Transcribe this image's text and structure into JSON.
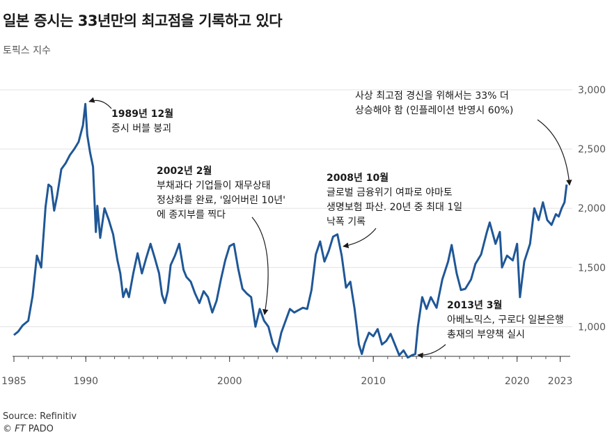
{
  "title": "일본 증시는 33년만의 최고점을 기록하고 있다",
  "subtitle": "토픽스 지수",
  "source": "Source: Refinitiv",
  "credit": {
    "copyright": "©",
    "ft": "FT",
    "partner": "PADO"
  },
  "colors": {
    "line": "#1f5797",
    "grid": "#e3e3e3",
    "text": "#1a1a1a"
  },
  "chart_data": {
    "type": "line",
    "title": "일본 증시는 33년만의 최고점을 기록하고 있다",
    "subtitle": "토픽스 지수",
    "xlabel": "",
    "ylabel": "",
    "x_ticks": [
      "1985",
      "1990",
      "2000",
      "2010",
      "2020",
      "2023"
    ],
    "y_ticks": [
      "1,000",
      "1,500",
      "2,000",
      "2,500",
      "3,000"
    ],
    "xlim": [
      1985,
      2023.6
    ],
    "ylim": [
      750,
      3000
    ],
    "grid": true,
    "legend": "none",
    "series": [
      {
        "values": [
          [
            1985.0,
            930
          ],
          [
            1985.3,
            960
          ],
          [
            1985.6,
            1010
          ],
          [
            1986.0,
            1050
          ],
          [
            1986.3,
            1260
          ],
          [
            1986.6,
            1600
          ],
          [
            1986.9,
            1500
          ],
          [
            1987.2,
            2010
          ],
          [
            1987.4,
            2200
          ],
          [
            1987.6,
            2180
          ],
          [
            1987.8,
            1980
          ],
          [
            1988.0,
            2100
          ],
          [
            1988.3,
            2330
          ],
          [
            1988.6,
            2380
          ],
          [
            1988.9,
            2450
          ],
          [
            1989.2,
            2500
          ],
          [
            1989.5,
            2560
          ],
          [
            1989.8,
            2700
          ],
          [
            1989.97,
            2880
          ],
          [
            1990.1,
            2620
          ],
          [
            1990.3,
            2470
          ],
          [
            1990.5,
            2350
          ],
          [
            1990.7,
            1800
          ],
          [
            1990.8,
            2020
          ],
          [
            1991.0,
            1750
          ],
          [
            1991.3,
            2000
          ],
          [
            1991.6,
            1900
          ],
          [
            1991.9,
            1780
          ],
          [
            1992.2,
            1560
          ],
          [
            1992.4,
            1450
          ],
          [
            1992.6,
            1250
          ],
          [
            1992.8,
            1320
          ],
          [
            1993.0,
            1250
          ],
          [
            1993.3,
            1450
          ],
          [
            1993.6,
            1620
          ],
          [
            1993.9,
            1450
          ],
          [
            1994.2,
            1580
          ],
          [
            1994.5,
            1700
          ],
          [
            1994.8,
            1580
          ],
          [
            1995.1,
            1450
          ],
          [
            1995.3,
            1270
          ],
          [
            1995.5,
            1200
          ],
          [
            1995.7,
            1300
          ],
          [
            1995.9,
            1520
          ],
          [
            1996.2,
            1600
          ],
          [
            1996.5,
            1700
          ],
          [
            1996.8,
            1480
          ],
          [
            1997.0,
            1420
          ],
          [
            1997.3,
            1380
          ],
          [
            1997.6,
            1280
          ],
          [
            1997.9,
            1200
          ],
          [
            1998.2,
            1300
          ],
          [
            1998.5,
            1250
          ],
          [
            1998.8,
            1120
          ],
          [
            1999.1,
            1220
          ],
          [
            1999.4,
            1400
          ],
          [
            1999.7,
            1560
          ],
          [
            2000.0,
            1680
          ],
          [
            2000.3,
            1700
          ],
          [
            2000.6,
            1490
          ],
          [
            2000.9,
            1320
          ],
          [
            2001.2,
            1280
          ],
          [
            2001.5,
            1250
          ],
          [
            2001.8,
            1000
          ],
          [
            2002.1,
            1150
          ],
          [
            2002.4,
            1050
          ],
          [
            2002.7,
            1000
          ],
          [
            2003.0,
            860
          ],
          [
            2003.3,
            790
          ],
          [
            2003.6,
            950
          ],
          [
            2003.9,
            1050
          ],
          [
            2004.2,
            1150
          ],
          [
            2004.5,
            1120
          ],
          [
            2004.8,
            1140
          ],
          [
            2005.1,
            1160
          ],
          [
            2005.4,
            1150
          ],
          [
            2005.7,
            1310
          ],
          [
            2006.0,
            1610
          ],
          [
            2006.3,
            1720
          ],
          [
            2006.6,
            1550
          ],
          [
            2006.9,
            1640
          ],
          [
            2007.2,
            1760
          ],
          [
            2007.5,
            1780
          ],
          [
            2007.8,
            1600
          ],
          [
            2008.1,
            1330
          ],
          [
            2008.4,
            1380
          ],
          [
            2008.7,
            1150
          ],
          [
            2009.0,
            850
          ],
          [
            2009.2,
            770
          ],
          [
            2009.4,
            860
          ],
          [
            2009.7,
            950
          ],
          [
            2010.0,
            920
          ],
          [
            2010.3,
            980
          ],
          [
            2010.6,
            850
          ],
          [
            2010.9,
            880
          ],
          [
            2011.2,
            940
          ],
          [
            2011.5,
            850
          ],
          [
            2011.8,
            760
          ],
          [
            2012.1,
            800
          ],
          [
            2012.4,
            740
          ],
          [
            2012.7,
            760
          ],
          [
            2012.92,
            770
          ],
          [
            2013.1,
            1000
          ],
          [
            2013.4,
            1250
          ],
          [
            2013.7,
            1150
          ],
          [
            2014.0,
            1250
          ],
          [
            2014.4,
            1160
          ],
          [
            2014.8,
            1400
          ],
          [
            2015.2,
            1550
          ],
          [
            2015.45,
            1690
          ],
          [
            2015.8,
            1450
          ],
          [
            2016.1,
            1310
          ],
          [
            2016.4,
            1320
          ],
          [
            2016.8,
            1400
          ],
          [
            2017.1,
            1530
          ],
          [
            2017.5,
            1610
          ],
          [
            2017.9,
            1800
          ],
          [
            2018.1,
            1880
          ],
          [
            2018.5,
            1700
          ],
          [
            2018.8,
            1800
          ],
          [
            2018.95,
            1500
          ],
          [
            2019.3,
            1600
          ],
          [
            2019.7,
            1560
          ],
          [
            2020.0,
            1700
          ],
          [
            2020.2,
            1250
          ],
          [
            2020.5,
            1550
          ],
          [
            2020.9,
            1700
          ],
          [
            2021.2,
            2000
          ],
          [
            2021.5,
            1900
          ],
          [
            2021.8,
            2050
          ],
          [
            2022.1,
            1900
          ],
          [
            2022.4,
            1860
          ],
          [
            2022.7,
            1950
          ],
          [
            2022.9,
            1930
          ],
          [
            2023.1,
            2000
          ],
          [
            2023.3,
            2050
          ],
          [
            2023.45,
            2200
          ]
        ]
      }
    ],
    "annotations": [
      {
        "title": "1989년 12월",
        "lines": [
          "증시 버블 붕괴"
        ]
      },
      {
        "title": "2002년 2월",
        "lines": [
          "부채과다 기업들이 재무상태",
          "정상화를 완료, '잃어버린 10년'",
          "에 종지부를 찍다"
        ]
      },
      {
        "title": "2008년 10월",
        "lines": [
          "글로벌 금융위기 여파로 야마토",
          "생명보험 파산. 20년 중 최대 1일",
          " 낙폭 기록"
        ]
      },
      {
        "title": "2013년 3월",
        "lines": [
          "아베노믹스, 구로다 일본은행",
          "총재의 부양책 실시"
        ]
      },
      {
        "title": "",
        "lines": [
          "사상 최고점 경신을 위해서는 33% 더",
          "상승해야 함 (인플레이션 반영시 60%)"
        ]
      }
    ]
  }
}
